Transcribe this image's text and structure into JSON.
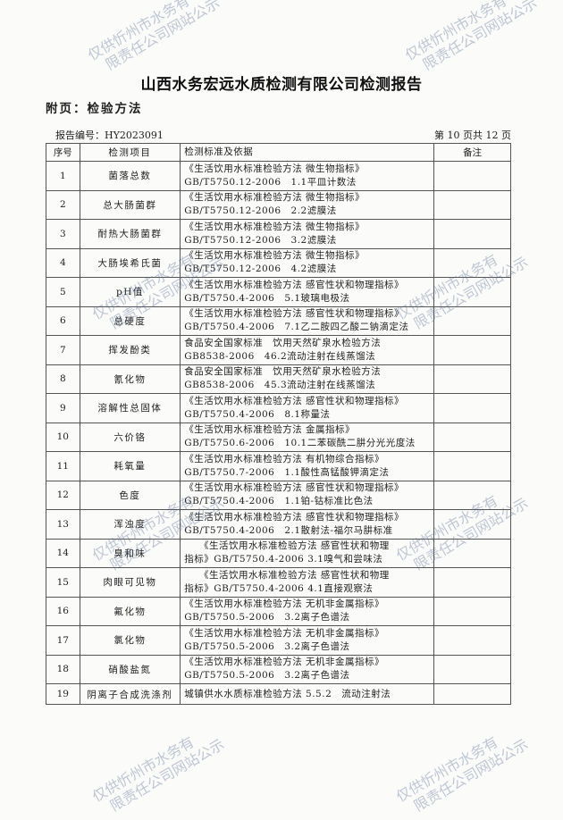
{
  "title": "山西水务宏远水质检测有限公司检测报告",
  "subtitle": "附页：检验方法",
  "report_no": "报告编号：HY2023091",
  "page_info": "第 10 页共 12 页",
  "table": {
    "headers": [
      "序号",
      "检测项目",
      "检测标准及依据",
      "备注"
    ],
    "rows": [
      {
        "no": "1",
        "item": "菌落总数",
        "std1": "《生活饮用水标准检验方法 微生物指标》",
        "std2": "GB/T5750.12-2006　1.1平皿计数法",
        "note": ""
      },
      {
        "no": "2",
        "item": "总大肠菌群",
        "std1": "《生活饮用水标准检验方法 微生物指标》",
        "std2": "GB/T5750.12-2006　2.2滤膜法",
        "note": ""
      },
      {
        "no": "3",
        "item": "耐热大肠菌群",
        "std1": "《生活饮用水标准检验方法 微生物指标》",
        "std2": "GB/T5750.12-2006　3.2滤膜法",
        "note": ""
      },
      {
        "no": "4",
        "item": "大肠埃希氏菌",
        "std1": "《生活饮用水标准检验方法 微生物指标》",
        "std2": "GB/T5750.12-2006　4.2滤膜法",
        "note": ""
      },
      {
        "no": "5",
        "item": "pH值",
        "std1": "《生活饮用水标准检验方法 感官性状和物理指标》",
        "std2": "GB/T5750.4-2006　5.1玻璃电极法",
        "note": ""
      },
      {
        "no": "6",
        "item": "总硬度",
        "std1": "《生活饮用水标准检验方法 感官性状和物理指标》",
        "std2": "GB/T5750.4-2006　7.1乙二胺四乙酸二钠滴定法",
        "note": ""
      },
      {
        "no": "7",
        "item": "挥发酚类",
        "std1": "食品安全国家标准　饮用天然矿泉水检验方法",
        "std2": "GB8538-2006　46.2流动注射在线蒸馏法",
        "note": ""
      },
      {
        "no": "8",
        "item": "氰化物",
        "std1": "食品安全国家标准　饮用天然矿泉水检验方法",
        "std2": "GB8538-2006　45.3流动注射在线蒸馏法",
        "note": ""
      },
      {
        "no": "9",
        "item": "溶解性总固体",
        "std1": "《生活饮用水标准检验方法 感官性状和物理指标》",
        "std2": "GB/T5750.4-2006　8.1称量法",
        "note": ""
      },
      {
        "no": "10",
        "item": "六价铬",
        "std1": "《生活饮用水标准检验方法 金属指标》",
        "std2": "GB/T5750.6-2006　10.1二苯碳酰二肼分光光度法",
        "note": ""
      },
      {
        "no": "11",
        "item": "耗氧量",
        "std1": "《生活饮用水标准检验方法 有机物综合指标》",
        "std2": "GB/T5750.7-2006　1.1酸性高锰酸钾滴定法",
        "note": ""
      },
      {
        "no": "12",
        "item": "色度",
        "std1": "《生活饮用水标准检验方法 感官性状和物理指标》",
        "std2": "GB/T5750.4-2006　1.1铂-钴标准比色法",
        "note": ""
      },
      {
        "no": "13",
        "item": "浑浊度",
        "std1": "《生活饮用水标准检验方法 感官性状和物理指标》",
        "std2": "GB/T5750.4-2006　2.1散射法-福尔马肼标准",
        "note": ""
      },
      {
        "no": "14",
        "item": "臭和味",
        "std1": "　　《生活饮用水标准检验方法 感官性状和物理",
        "std2": "指标》GB/T5750.4-2006 3.1嗅气和尝味法",
        "note": ""
      },
      {
        "no": "15",
        "item": "肉眼可见物",
        "std1": "　　《生活饮用水标准检验方法 感官性状和物理",
        "std2": "指标》GB/T5750.4-2006 4.1直接观察法",
        "note": ""
      },
      {
        "no": "16",
        "item": "氟化物",
        "std1": "《生活饮用水标准检验方法 无机非金属指标》",
        "std2": "GB/T5750.5-2006　3.2离子色谱法",
        "note": ""
      },
      {
        "no": "17",
        "item": "氯化物",
        "std1": "《生活饮用水标准检验方法 无机非金属指标》",
        "std2": "GB/T5750.5-2006　3.2离子色谱法",
        "note": ""
      },
      {
        "no": "18",
        "item": "硝酸盐氮",
        "std1": "《生活饮用水标准检验方法 无机非金属指标》",
        "std2": "GB/T5750.5-2006　3.2离子色谱法",
        "note": ""
      },
      {
        "no": "19",
        "item": "阴离子合成洗涤剂",
        "std1": "城镇供水水质标准检验方法 5.5.2　流动注射法",
        "std2": "",
        "note": ""
      }
    ]
  },
  "watermark": {
    "line1": "仅供忻州市水务有",
    "line2": "限责任公司网站公示"
  }
}
